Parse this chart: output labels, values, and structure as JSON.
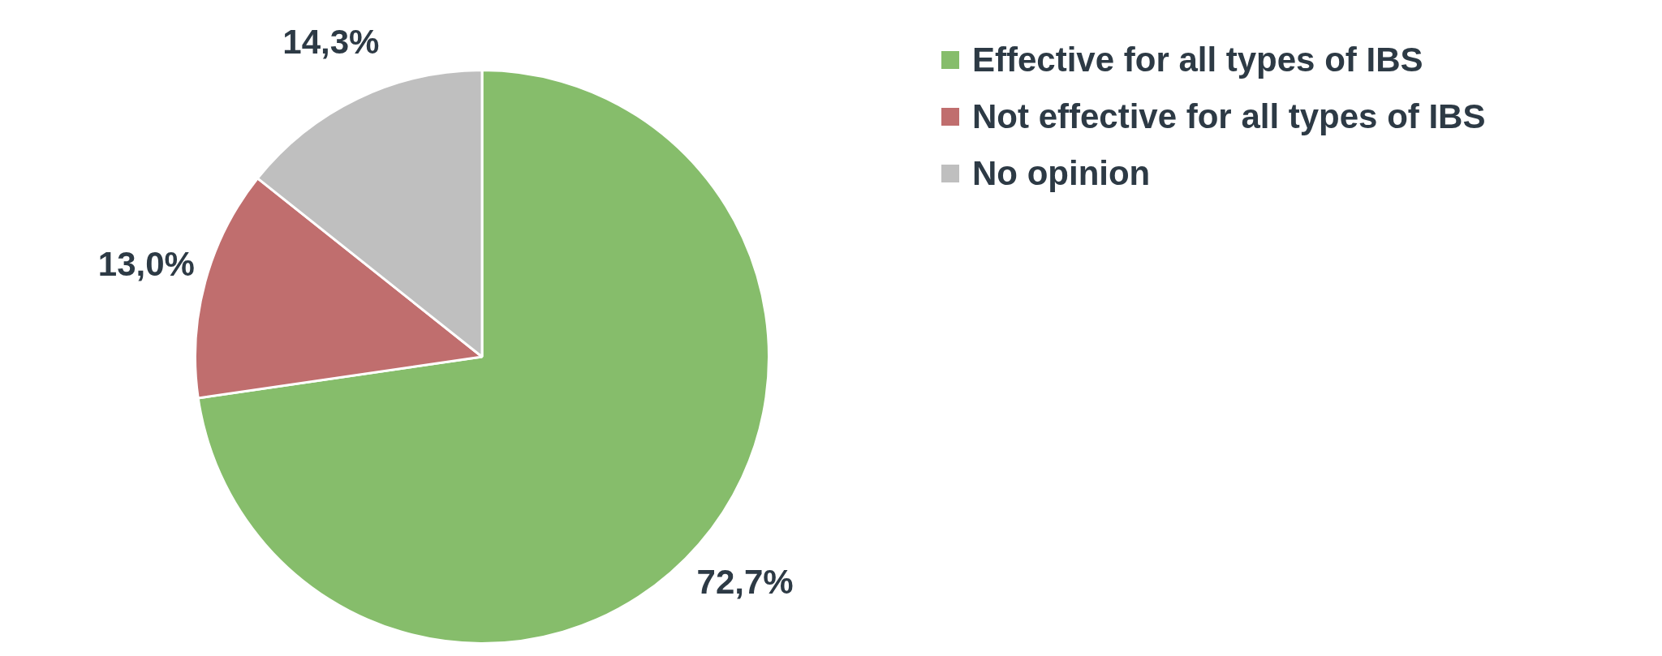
{
  "chart_data": {
    "type": "pie",
    "categories": [
      "Effective for all types of IBS",
      "Not effective for all types of IBS",
      "No opinion"
    ],
    "values": [
      72.7,
      13.0,
      14.3
    ],
    "value_labels": [
      "72,7%",
      "13,0%",
      "14,3%"
    ],
    "colors": [
      "#86bd6b",
      "#c06e6e",
      "#bfbfbf"
    ],
    "legend": "top right"
  }
}
